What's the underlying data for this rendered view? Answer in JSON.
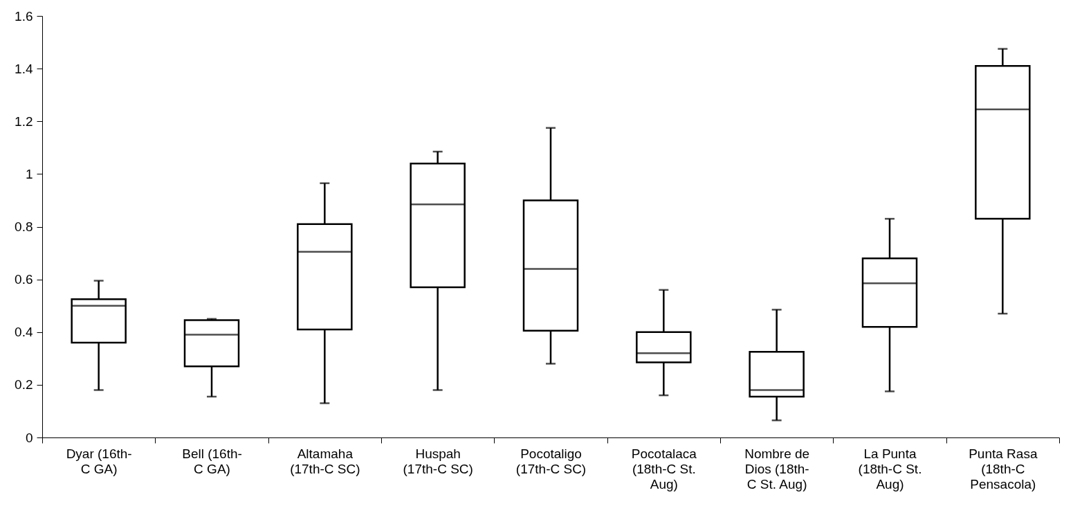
{
  "chart_data": {
    "type": "box",
    "categories": [
      "Dyar (16th-C GA)",
      "Bell (16th-C GA)",
      "Altamaha (17th-C SC)",
      "Huspah (17th-C SC)",
      "Pocotaligo (17th-C SC)",
      "Pocotalaca (18th-C St. Aug)",
      "Nombre de Dios (18th-C St. Aug)",
      "La Punta (18th-C St. Aug)",
      "Punta Rasa (18th-C Pensacola)"
    ],
    "boxes": [
      {
        "low": 0.18,
        "q1": 0.36,
        "median": 0.5,
        "q3": 0.525,
        "high": 0.595
      },
      {
        "low": 0.155,
        "q1": 0.27,
        "median": 0.39,
        "q3": 0.445,
        "high": 0.45
      },
      {
        "low": 0.13,
        "q1": 0.41,
        "median": 0.705,
        "q3": 0.81,
        "high": 0.965
      },
      {
        "low": 0.18,
        "q1": 0.57,
        "median": 0.885,
        "q3": 1.04,
        "high": 1.085
      },
      {
        "low": 0.28,
        "q1": 0.405,
        "median": 0.64,
        "q3": 0.9,
        "high": 1.175
      },
      {
        "low": 0.16,
        "q1": 0.285,
        "median": 0.32,
        "q3": 0.4,
        "high": 0.56
      },
      {
        "low": 0.065,
        "q1": 0.155,
        "median": 0.18,
        "q3": 0.325,
        "high": 0.485
      },
      {
        "low": 0.175,
        "q1": 0.42,
        "median": 0.585,
        "q3": 0.68,
        "high": 0.83
      },
      {
        "low": 0.47,
        "q1": 0.83,
        "median": 1.245,
        "q3": 1.41,
        "high": 1.475
      }
    ],
    "ylim": [
      0,
      1.6
    ],
    "yticks": [
      0,
      0.2,
      0.4,
      0.6,
      0.8,
      1,
      1.2,
      1.4,
      1.6
    ],
    "grid": false
  }
}
